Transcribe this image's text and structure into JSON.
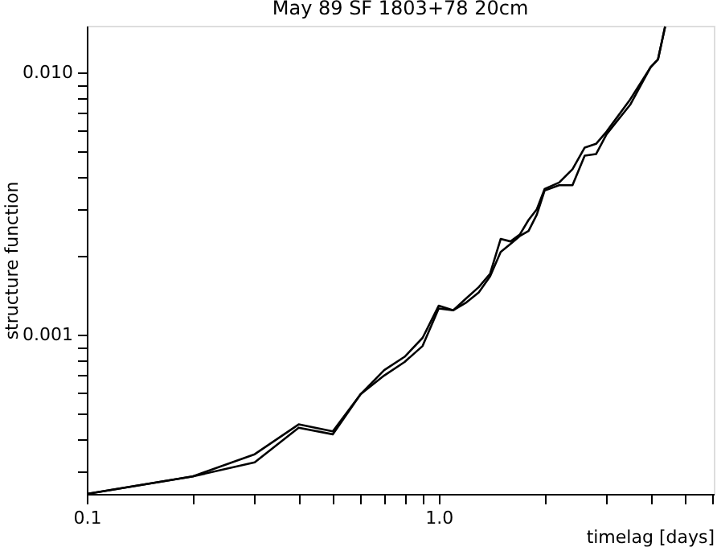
{
  "chart_data": {
    "type": "line",
    "title": "May 89       SF   1803+78          20cm",
    "xlabel": "timelag [days]",
    "ylabel": "structure function",
    "log": "xy",
    "grid": false,
    "legend": false,
    "marker": "none",
    "line_style": "solid",
    "x": [
      0.1,
      0.2,
      0.3,
      0.4,
      0.5,
      0.6,
      0.7,
      0.8,
      0.9,
      1.0,
      1.1,
      1.2,
      1.3,
      1.4,
      1.5,
      1.6,
      1.7,
      1.8,
      1.9,
      2.0,
      2.2,
      2.4,
      2.6,
      2.8,
      3.0,
      3.5,
      4.0,
      4.2,
      4.4
    ],
    "series": [
      {
        "color": "#000000",
        "values": [
          0.000247,
          0.000288,
          0.00035,
          0.000455,
          0.000428,
          0.000593,
          0.000733,
          0.000824,
          0.000973,
          0.00129,
          0.00124,
          0.00138,
          0.00152,
          0.00171,
          0.00232,
          0.00227,
          0.00241,
          0.00274,
          0.00301,
          0.0036,
          0.00381,
          0.00428,
          0.00518,
          0.00535,
          0.00596,
          0.0079,
          0.01048,
          0.01124,
          0.015
        ]
      },
      {
        "color": "#000000",
        "values": [
          0.000247,
          0.000288,
          0.000326,
          0.000442,
          0.000417,
          0.000593,
          0.000699,
          0.000787,
          0.000906,
          0.00126,
          0.00124,
          0.00133,
          0.00145,
          0.00167,
          0.00207,
          0.00222,
          0.00238,
          0.00249,
          0.00287,
          0.00355,
          0.00372,
          0.00372,
          0.00482,
          0.00489,
          0.00582,
          0.00754,
          0.01048,
          0.01124,
          0.015
        ]
      }
    ],
    "xlim": [
      0.1,
      6.05
    ],
    "ylim": [
      0.000247,
      0.0151
    ],
    "xticks": [
      0.1,
      {
        "value": 0.2,
        "label": null
      },
      {
        "value": 0.3,
        "label": null
      },
      {
        "value": 0.4,
        "label": null
      },
      {
        "value": 0.5,
        "label": null
      },
      {
        "value": 0.6,
        "label": null
      },
      {
        "value": 0.7,
        "label": null
      },
      {
        "value": 0.8,
        "label": null
      },
      {
        "value": 0.9,
        "label": null
      },
      {
        "value": 1.0,
        "label": "1.0"
      },
      {
        "value": 2,
        "label": null
      },
      {
        "value": 3,
        "label": null
      },
      {
        "value": 4,
        "label": null
      },
      {
        "value": 5,
        "label": null
      },
      {
        "value": 6,
        "label": null
      }
    ],
    "yticks": [
      {
        "value": 0.0003,
        "label": null
      },
      {
        "value": 0.0004,
        "label": null
      },
      {
        "value": 0.0005,
        "label": null
      },
      {
        "value": 0.0006,
        "label": null
      },
      {
        "value": 0.0007,
        "label": null
      },
      {
        "value": 0.0008,
        "label": null
      },
      {
        "value": 0.0009,
        "label": null
      },
      0.001,
      {
        "value": 0.002,
        "label": null
      },
      {
        "value": 0.003,
        "label": null
      },
      {
        "value": 0.004,
        "label": null
      },
      {
        "value": 0.005,
        "label": null
      },
      {
        "value": 0.006,
        "label": null
      },
      {
        "value": 0.007,
        "label": null
      },
      {
        "value": 0.008,
        "label": null
      },
      {
        "value": 0.009,
        "label": null
      },
      {
        "value": 0.01,
        "label": "0.010"
      }
    ]
  }
}
